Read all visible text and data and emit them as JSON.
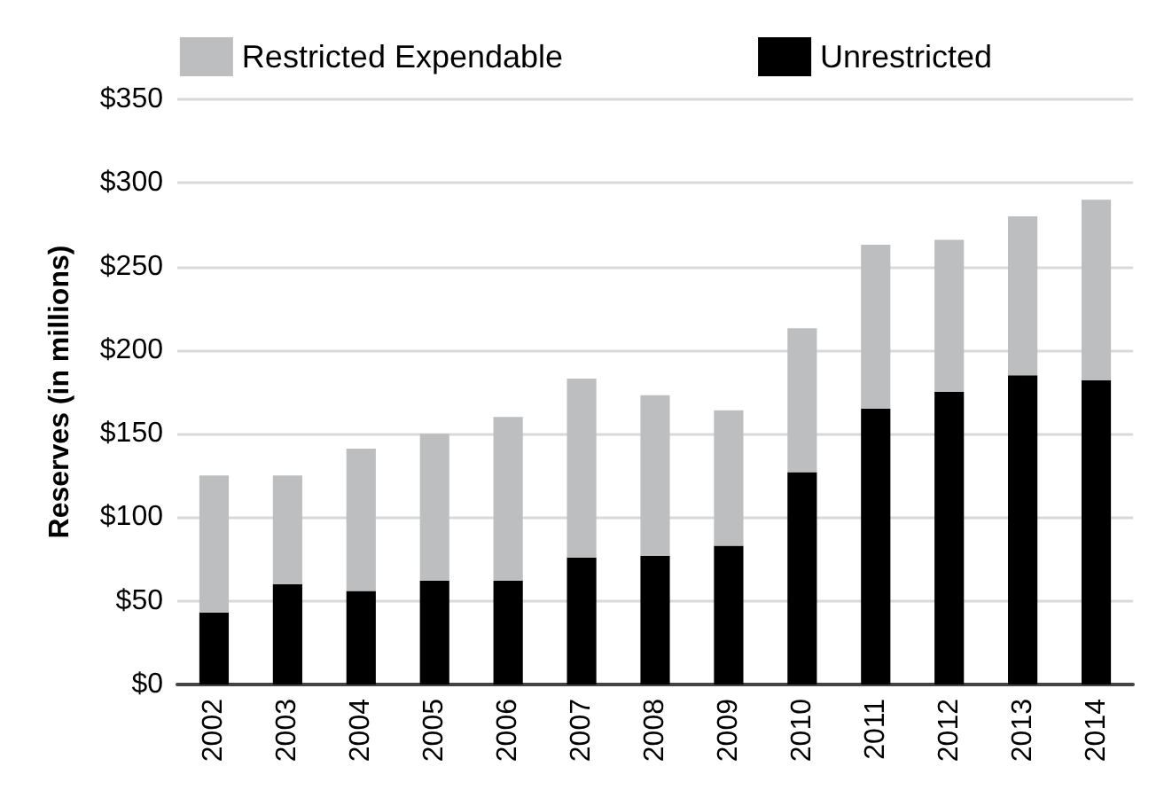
{
  "chart_data": {
    "type": "bar",
    "stacked": true,
    "ylabel": "Reserves (in millions)",
    "categories": [
      "2002",
      "2003",
      "2004",
      "2005",
      "2006",
      "2007",
      "2008",
      "2009",
      "2010",
      "2011",
      "2012",
      "2013",
      "2014"
    ],
    "series": [
      {
        "name": "Unrestricted",
        "color": "#000000",
        "values": [
          43,
          60,
          56,
          62,
          62,
          76,
          77,
          83,
          127,
          165,
          175,
          185,
          182
        ]
      },
      {
        "name": "Restricted Expendable",
        "color": "#bdbec0",
        "values": [
          82,
          65,
          85,
          88,
          98,
          107,
          96,
          81,
          86,
          98,
          91,
          95,
          108
        ]
      }
    ],
    "ylim": [
      0,
      350
    ],
    "yticks": [
      {
        "value": 0,
        "label": "$0"
      },
      {
        "value": 50,
        "label": "$50"
      },
      {
        "value": 100,
        "label": "$100"
      },
      {
        "value": 150,
        "label": "$150"
      },
      {
        "value": 200,
        "label": "$200"
      },
      {
        "value": 250,
        "label": "$250"
      },
      {
        "value": 300,
        "label": "$300"
      },
      {
        "value": 350,
        "label": "$350"
      }
    ],
    "grid": "y",
    "legend": "top"
  }
}
